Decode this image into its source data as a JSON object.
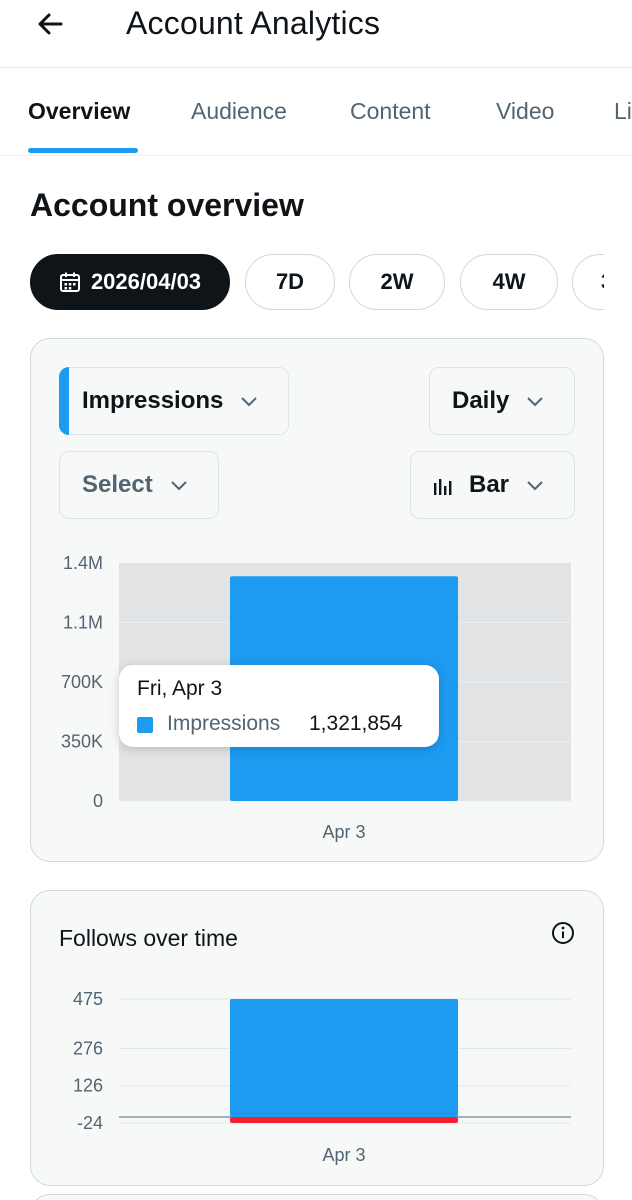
{
  "header": {
    "title": "Account Analytics",
    "back_icon": "arrow-left-icon"
  },
  "tabs": [
    {
      "label": "Overview",
      "active": true
    },
    {
      "label": "Audience"
    },
    {
      "label": "Content"
    },
    {
      "label": "Video"
    },
    {
      "label": "Li"
    }
  ],
  "section": {
    "title": "Account overview"
  },
  "date_range": {
    "selected_date": "2026/04/03",
    "options": [
      "7D",
      "2W",
      "4W",
      "3"
    ]
  },
  "impressions_card": {
    "metric_select": "Impressions",
    "granularity_select": "Daily",
    "compare_select": "Select",
    "chart_type_select": "Bar",
    "tooltip": {
      "date": "Fri, Apr 3",
      "series": "Impressions",
      "value": "1,321,854"
    }
  },
  "follows_card": {
    "title": "Follows over time"
  },
  "colors": {
    "accent": "#1d9bf0",
    "negative": "#f4212e",
    "text": "#0f1419",
    "muted": "#536471"
  },
  "chart_data": [
    {
      "type": "bar",
      "categories": [
        "Apr 3"
      ],
      "series": [
        {
          "name": "Impressions",
          "values": [
            1321854
          ]
        }
      ],
      "yticks": [
        "1.4M",
        "1.1M",
        "700K",
        "350K",
        "0"
      ],
      "ylim": [
        0,
        1400000
      ],
      "grid": true,
      "legend": "none"
    },
    {
      "type": "bar",
      "title": "Follows over time",
      "categories": [
        "Apr 3"
      ],
      "series": [
        {
          "values": [
            475
          ]
        },
        {
          "values": [
            -24
          ]
        }
      ],
      "yticks": [
        "475",
        "276",
        "126",
        "-24"
      ],
      "ylim": [
        -24,
        475
      ],
      "grid": true,
      "legend": "none"
    }
  ]
}
